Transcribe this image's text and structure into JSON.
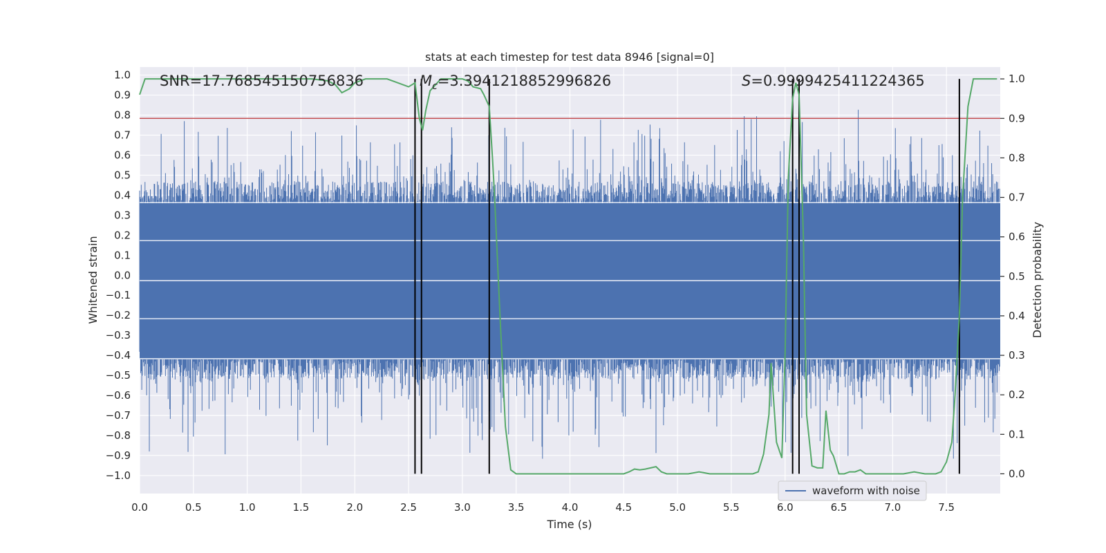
{
  "chart_data": {
    "type": "line",
    "title": "stats at each timestep for test data 8946 [signal=0]",
    "xlabel": "Time (s)",
    "ylabel_left": "Whitened strain",
    "ylabel_right": "Detection probability",
    "xlim": [
      0.0,
      8.0
    ],
    "ylim_left": [
      -1.09,
      1.04
    ],
    "ylim_right": [
      -0.05,
      1.03
    ],
    "x_ticks": [
      0.0,
      0.5,
      1.0,
      1.5,
      2.0,
      2.5,
      3.0,
      3.5,
      4.0,
      4.5,
      5.0,
      5.5,
      6.0,
      6.5,
      7.0,
      7.5
    ],
    "x_tick_labels": [
      "0.0",
      "0.5",
      "1.0",
      "1.5",
      "2.0",
      "2.5",
      "3.0",
      "3.5",
      "4.0",
      "4.5",
      "5.0",
      "5.5",
      "6.0",
      "6.5",
      "7.0",
      "7.5"
    ],
    "y_left_ticks": [
      1.0,
      0.9,
      0.8,
      0.7,
      0.6,
      0.5,
      0.4,
      0.3,
      0.2,
      0.1,
      0.0,
      -0.1,
      -0.2,
      -0.3,
      -0.4,
      -0.5,
      -0.6,
      -0.7,
      -0.8,
      -0.9,
      -1.0
    ],
    "y_left_tick_labels": [
      "1.0",
      "0.9",
      "0.8",
      "0.7",
      "0.6",
      "0.5",
      "0.4",
      "0.3",
      "0.2",
      "0.1",
      "0.0",
      "−0.1",
      "−0.2",
      "−0.3",
      "−0.4",
      "−0.5",
      "−0.6",
      "−0.7",
      "−0.8",
      "−0.9",
      "−1.0"
    ],
    "y_right_ticks": [
      1.0,
      0.9,
      0.8,
      0.7,
      0.6,
      0.5,
      0.4,
      0.3,
      0.2,
      0.1,
      0.0
    ],
    "y_right_tick_labels": [
      "1.0",
      "0.9",
      "0.8",
      "0.7",
      "0.6",
      "0.5",
      "0.4",
      "0.3",
      "0.2",
      "0.1",
      "0.0"
    ],
    "annotations": {
      "snr": "SNR=17.768545150756836",
      "mc_symbol": "M",
      "mc_sub": "c",
      "mc_value": "=3.3941218852996826",
      "s_symbol": "S",
      "s_value": "=0.9999425411224365"
    },
    "legend": {
      "label": "waveform with noise",
      "placement": "lower-right"
    },
    "threshold": {
      "value": 0.9,
      "axis": "right",
      "color": "#c44e52"
    },
    "vlines": [
      2.56,
      2.62,
      3.25,
      6.07,
      6.13,
      7.62
    ],
    "waveform": {
      "name": "waveform with noise",
      "color": "#4c72b0",
      "duration": 8.0,
      "samples": 1600,
      "base_amplitude": 0.33,
      "peak_max": 0.9,
      "trough_min": -1.0
    },
    "detection_probability": {
      "name": "Detection probability",
      "color": "#55a868",
      "x": [
        0.0,
        0.05,
        0.1,
        0.3,
        0.5,
        0.8,
        1.0,
        1.2,
        1.4,
        1.6,
        1.75,
        1.82,
        1.88,
        1.95,
        2.0,
        2.1,
        2.3,
        2.4,
        2.5,
        2.56,
        2.6,
        2.63,
        2.66,
        2.7,
        2.8,
        2.9,
        3.0,
        3.05,
        3.1,
        3.17,
        3.2,
        3.25,
        3.28,
        3.3,
        3.35,
        3.4,
        3.45,
        3.5,
        3.6,
        3.8,
        4.0,
        4.2,
        4.4,
        4.5,
        4.55,
        4.6,
        4.65,
        4.7,
        4.75,
        4.8,
        4.85,
        4.9,
        5.0,
        5.1,
        5.2,
        5.3,
        5.5,
        5.7,
        5.75,
        5.8,
        5.85,
        5.87,
        5.92,
        5.97,
        6.0,
        6.03,
        6.07,
        6.1,
        6.13,
        6.17,
        6.2,
        6.25,
        6.3,
        6.35,
        6.38,
        6.42,
        6.45,
        6.5,
        6.55,
        6.6,
        6.65,
        6.7,
        6.75,
        6.8,
        6.9,
        7.0,
        7.1,
        7.2,
        7.3,
        7.4,
        7.45,
        7.5,
        7.55,
        7.58,
        7.62,
        7.65,
        7.7,
        7.75,
        7.8,
        7.85,
        7.9,
        7.93,
        7.97
      ],
      "y": [
        0.96,
        1.0,
        1.0,
        1.0,
        1.0,
        1.0,
        1.0,
        1.0,
        1.0,
        1.0,
        0.995,
        0.985,
        0.965,
        0.975,
        0.99,
        1.0,
        1.0,
        0.99,
        0.98,
        0.99,
        0.9,
        0.87,
        0.92,
        0.97,
        1.0,
        1.0,
        1.0,
        0.995,
        0.98,
        0.975,
        0.96,
        0.93,
        0.8,
        0.7,
        0.4,
        0.12,
        0.01,
        0.0,
        0.0,
        0.0,
        0.0,
        0.0,
        0.0,
        0.0,
        0.005,
        0.012,
        0.01,
        0.012,
        0.015,
        0.018,
        0.005,
        0.0,
        0.0,
        0.0,
        0.005,
        0.0,
        0.0,
        0.0,
        0.005,
        0.05,
        0.15,
        0.28,
        0.08,
        0.04,
        0.3,
        0.75,
        0.95,
        0.99,
        0.96,
        0.6,
        0.15,
        0.02,
        0.015,
        0.015,
        0.16,
        0.06,
        0.045,
        0.0,
        0.0,
        0.005,
        0.005,
        0.01,
        0.0,
        0.0,
        0.0,
        0.0,
        0.0,
        0.005,
        0.0,
        0.0,
        0.005,
        0.03,
        0.08,
        0.2,
        0.4,
        0.7,
        0.93,
        1.0,
        1.0,
        1.0,
        1.0,
        1.0,
        1.0
      ]
    }
  }
}
